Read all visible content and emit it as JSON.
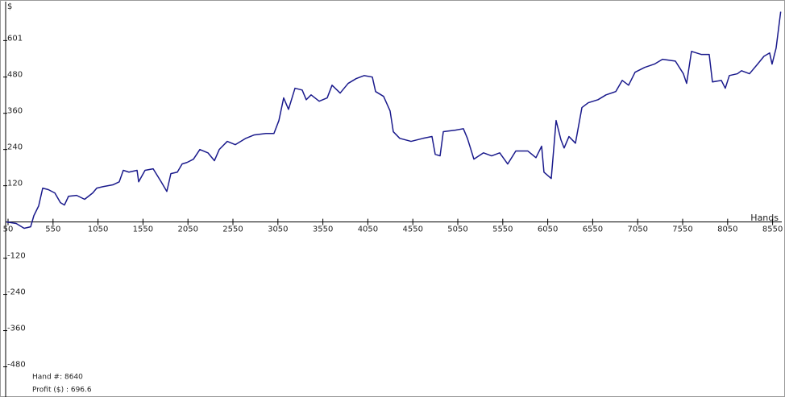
{
  "chart_data": {
    "type": "line",
    "y_label": "$",
    "x_label": "Hands",
    "info": {
      "hand_label": "Hand #: 8640",
      "profit_label": "Profit ($) : 696.6"
    },
    "xlim": [
      23,
      8652
    ],
    "ylim": [
      -580,
      722
    ],
    "xticks": [
      50,
      550,
      1050,
      1550,
      2050,
      2550,
      3050,
      3550,
      4050,
      4550,
      5050,
      5550,
      6050,
      6550,
      7050,
      7550,
      8050,
      8550
    ],
    "yticks": [
      -480,
      -360,
      -240,
      -120,
      120,
      240,
      360,
      480,
      601
    ],
    "x": [
      32,
      140,
      229,
      301,
      337,
      390,
      435,
      498,
      570,
      632,
      677,
      722,
      812,
      901,
      991,
      1036,
      1107,
      1215,
      1286,
      1331,
      1394,
      1484,
      1502,
      1573,
      1663,
      1752,
      1815,
      1860,
      1932,
      1985,
      2039,
      2111,
      2182,
      2272,
      2344,
      2398,
      2487,
      2577,
      2693,
      2783,
      2917,
      3006,
      3061,
      3114,
      3168,
      3240,
      3320,
      3365,
      3419,
      3509,
      3598,
      3652,
      3742,
      3831,
      3921,
      4010,
      4100,
      4136,
      4225,
      4297,
      4333,
      4405,
      4530,
      4664,
      4763,
      4799,
      4853,
      4889,
      5023,
      5112,
      5157,
      5229,
      5336,
      5426,
      5516,
      5605,
      5695,
      5829,
      5919,
      5982,
      6008,
      6089,
      6143,
      6197,
      6232,
      6286,
      6358,
      6430,
      6501,
      6609,
      6698,
      6806,
      6878,
      6949,
      7021,
      7128,
      7236,
      7326,
      7469,
      7558,
      7594,
      7648,
      7756,
      7845,
      7881,
      7980,
      8024,
      8069,
      8159,
      8204,
      8293,
      8383,
      8454,
      8517,
      8544,
      8589,
      8640
    ],
    "series": [
      {
        "name": "Profit",
        "color": "#1a1a8c",
        "values": [
          0,
          -5,
          -21,
          -16,
          21,
          53,
          112,
          107,
          96,
          64,
          56,
          85,
          88,
          75,
          96,
          112,
          117,
          123,
          133,
          171,
          165,
          171,
          133,
          171,
          176,
          133,
          101,
          160,
          165,
          192,
          197,
          208,
          240,
          229,
          203,
          240,
          267,
          256,
          277,
          288,
          293,
          293,
          336,
          411,
          373,
          443,
          437,
          405,
          421,
          400,
          411,
          453,
          427,
          459,
          475,
          485,
          480,
          432,
          416,
          368,
          299,
          277,
          267,
          277,
          283,
          224,
          219,
          299,
          304,
          309,
          277,
          208,
          229,
          219,
          229,
          192,
          235,
          235,
          213,
          251,
          165,
          144,
          336,
          272,
          245,
          283,
          261,
          379,
          395,
          405,
          421,
          432,
          469,
          453,
          496,
          512,
          523,
          539,
          533,
          491,
          459,
          565,
          555,
          555,
          464,
          469,
          443,
          485,
          491,
          501,
          491,
          523,
          549,
          560,
          523,
          576,
          696.6
        ]
      }
    ]
  }
}
